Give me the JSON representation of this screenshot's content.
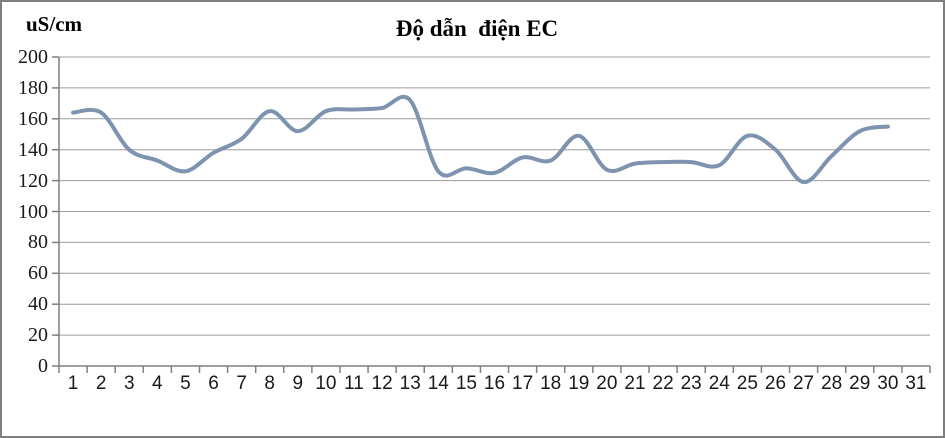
{
  "frame": {
    "background": "#ffffff",
    "border_color": "#7f7f7f"
  },
  "chart_data": {
    "type": "line",
    "title": "Độ dẫn  điện EC",
    "unit_label": "uS/cm",
    "xlabel": "",
    "ylabel": "uS/cm",
    "x_categories": [
      "1",
      "2",
      "3",
      "4",
      "5",
      "6",
      "7",
      "8",
      "9",
      "10",
      "11",
      "12",
      "13",
      "14",
      "15",
      "16",
      "17",
      "18",
      "19",
      "20",
      "21",
      "22",
      "23",
      "24",
      "25",
      "26",
      "27",
      "28",
      "29",
      "30",
      "31"
    ],
    "series": [
      {
        "name": "EC",
        "values": [
          164,
          164,
          140,
          133,
          126,
          138,
          147,
          165,
          152,
          165,
          166,
          167,
          172,
          126,
          128,
          125,
          135,
          133,
          149,
          127,
          131,
          132,
          132,
          130,
          149,
          140,
          119,
          136,
          152,
          155
        ],
        "color": "#7e93af",
        "smooth": true,
        "stroke_width": 4
      }
    ],
    "ylim": [
      0,
      200
    ],
    "ytick_step": 20,
    "ytick_labels": [
      "0",
      "20",
      "40",
      "60",
      "80",
      "100",
      "120",
      "140",
      "160",
      "180",
      "200"
    ],
    "grid": true,
    "legend": "none",
    "gridline_color": "#9c9c9c",
    "axis_color": "#7f7f7f",
    "tick_color": "#7f7f7f",
    "label_color": "#1a1a1a"
  }
}
